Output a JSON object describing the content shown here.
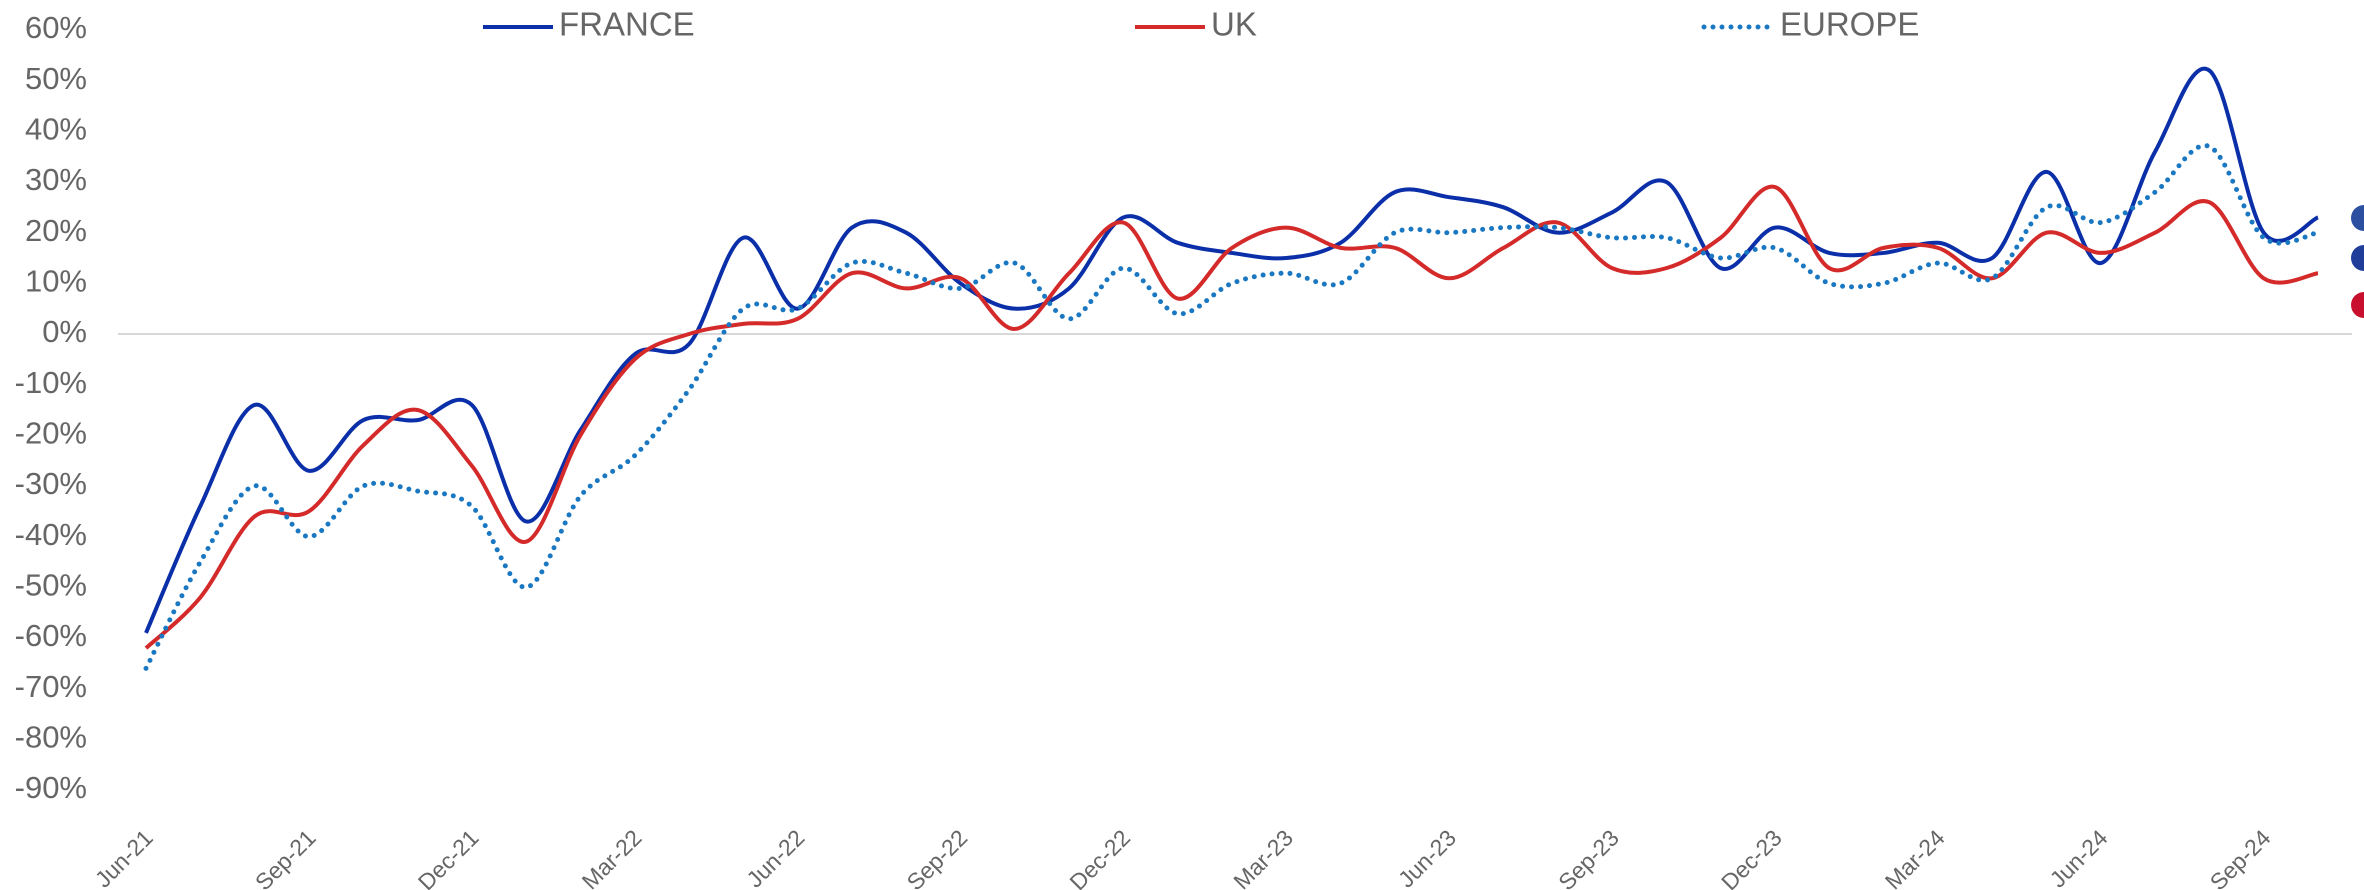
{
  "chart_data": {
    "type": "line",
    "categories": [
      "Jun-21",
      null,
      null,
      "Sep-21",
      null,
      null,
      "Dec-21",
      null,
      null,
      "Mar-22",
      null,
      null,
      "Jun-22",
      null,
      null,
      "Sep-22",
      null,
      null,
      "Dec-22",
      null,
      null,
      "Mar-23",
      null,
      null,
      "Jun-23",
      null,
      null,
      "Sep-23",
      null,
      null,
      "Dec-23",
      null,
      null,
      "Mar-24",
      null,
      null,
      "Jun-24",
      null,
      null,
      "Sep-24",
      null
    ],
    "series": [
      {
        "name": "FRANCE",
        "color": "#0a2fa8",
        "values": [
          -59,
          -34,
          -14,
          -27,
          -17,
          -17,
          -14,
          -37,
          -19,
          -4,
          -2,
          19,
          5,
          21,
          20,
          10,
          5,
          9,
          23,
          18,
          16,
          15,
          18,
          28,
          27,
          25,
          20,
          24,
          30,
          13,
          21,
          16,
          16,
          18,
          15,
          32,
          14,
          36,
          52,
          20,
          23
        ]
      },
      {
        "name": "UK",
        "color": "#d42a2a",
        "values": [
          -62,
          -52,
          -36,
          -35,
          -22,
          -15,
          -26,
          -41,
          -20,
          -5,
          0,
          2,
          3,
          12,
          9,
          11,
          1,
          12,
          22,
          7,
          17,
          21,
          17,
          17,
          11,
          17,
          22,
          13,
          13,
          19,
          29,
          13,
          17,
          17,
          11,
          20,
          16,
          20,
          26,
          11,
          12
        ]
      },
      {
        "name": "EUROPE",
        "color": "#1a78c2",
        "dashed": true,
        "values": [
          -66,
          -45,
          -30,
          -40,
          -30,
          -31,
          -34,
          -50,
          -32,
          -24,
          -11,
          5,
          5,
          14,
          12,
          9,
          14,
          3,
          13,
          4,
          10,
          12,
          10,
          20,
          20,
          21,
          21,
          19,
          19,
          15,
          17,
          10,
          10,
          14,
          11,
          25,
          22,
          28,
          37,
          19,
          20
        ]
      }
    ],
    "ylim": [
      -90,
      60
    ],
    "yticks": [
      {
        "value": 60,
        "label": "60%"
      },
      {
        "value": 50,
        "label": "50%"
      },
      {
        "value": 40,
        "label": "40%"
      },
      {
        "value": 30,
        "label": "30%"
      },
      {
        "value": 20,
        "label": "20%"
      },
      {
        "value": 10,
        "label": "10%"
      },
      {
        "value": 0,
        "label": "0%"
      },
      {
        "value": -10,
        "label": "-10%"
      },
      {
        "value": -20,
        "label": "-20%"
      },
      {
        "value": -30,
        "label": "-30%"
      },
      {
        "value": -40,
        "label": "-40%"
      },
      {
        "value": -50,
        "label": "-50%"
      },
      {
        "value": -60,
        "label": "-60%"
      },
      {
        "value": -70,
        "label": "-70%"
      },
      {
        "value": -80,
        "label": "-80%"
      },
      {
        "value": -90,
        "label": "-90%"
      }
    ],
    "zero_line": true,
    "legend": "top"
  }
}
